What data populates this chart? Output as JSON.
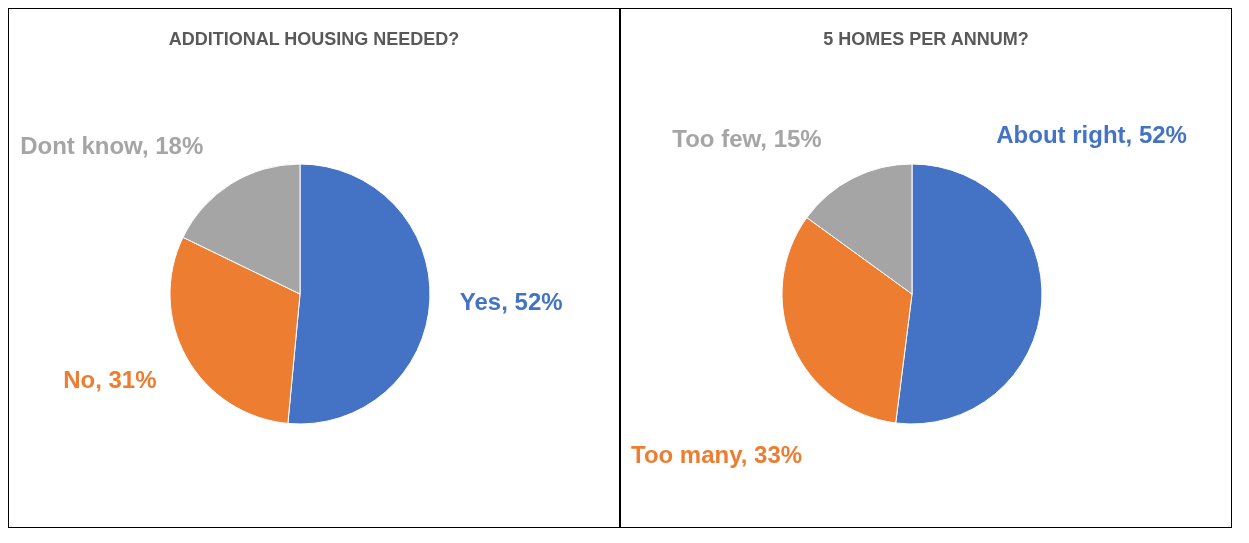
{
  "chart_data": [
    {
      "type": "pie",
      "title": "ADDITIONAL HOUSING NEEDED?",
      "categories": [
        "Yes",
        "No",
        "Dont know"
      ],
      "values": [
        52,
        31,
        18
      ],
      "colors": [
        "#4472c4",
        "#ed7d31",
        "#a5a5a5"
      ],
      "value_labels": [
        "52%",
        "31%",
        "18%"
      ]
    },
    {
      "type": "pie",
      "title": "5 HOMES PER ANNUM?",
      "categories": [
        "About right",
        "Too many",
        "Too few"
      ],
      "values": [
        52,
        33,
        15
      ],
      "colors": [
        "#4472c4",
        "#ed7d31",
        "#a5a5a5"
      ],
      "value_labels": [
        "52%",
        "33%",
        "15%"
      ]
    }
  ]
}
